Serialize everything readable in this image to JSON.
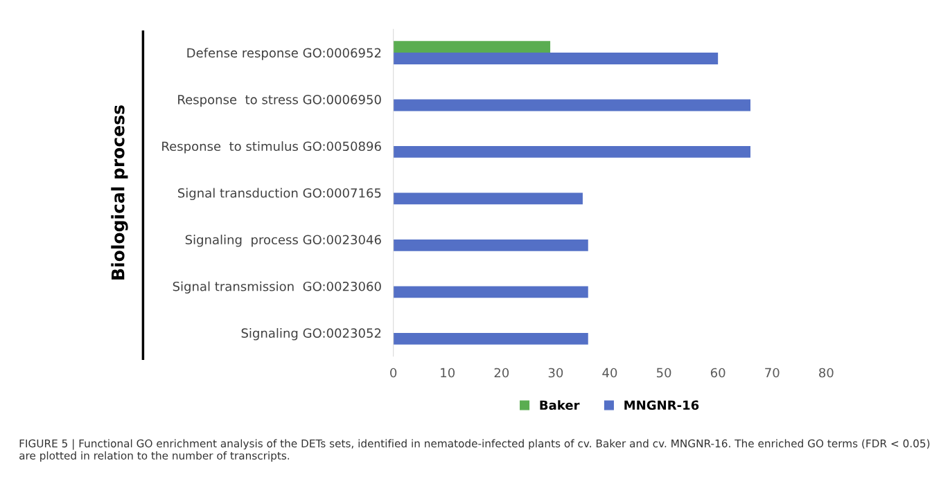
{
  "chart_data": {
    "type": "bar",
    "orientation": "horizontal",
    "ylabel": "Biological process",
    "categories": [
      "Defense response GO:0006952",
      "Response  to stress GO:0006950",
      "Response  to stimulus GO:0050896",
      "Signal transduction GO:0007165",
      "Signaling  process GO:0023046",
      "Signal transmission  GO:0023060",
      "Signaling GO:0023052"
    ],
    "series": [
      {
        "name": "Baker",
        "color": "#5aad51",
        "values": [
          29,
          null,
          null,
          null,
          null,
          null,
          null
        ]
      },
      {
        "name": "MNGNR-16",
        "color": "#5470c6",
        "values": [
          60,
          66,
          66,
          35,
          36,
          36,
          36
        ]
      }
    ],
    "xlim": [
      0,
      80
    ],
    "xticks": [
      0,
      10,
      20,
      30,
      40,
      50,
      60,
      70,
      80
    ],
    "grid": false,
    "legend": "bottom",
    "annotations": [
      "FIGURE 5 | Functional GO enrichment analysis of the DETs sets, identified in nematode-infected plants of cv. Baker and cv. MNGNR-16. The enriched GO terms (FDR < 0.05) are plotted in relation to the number of transcripts."
    ]
  }
}
